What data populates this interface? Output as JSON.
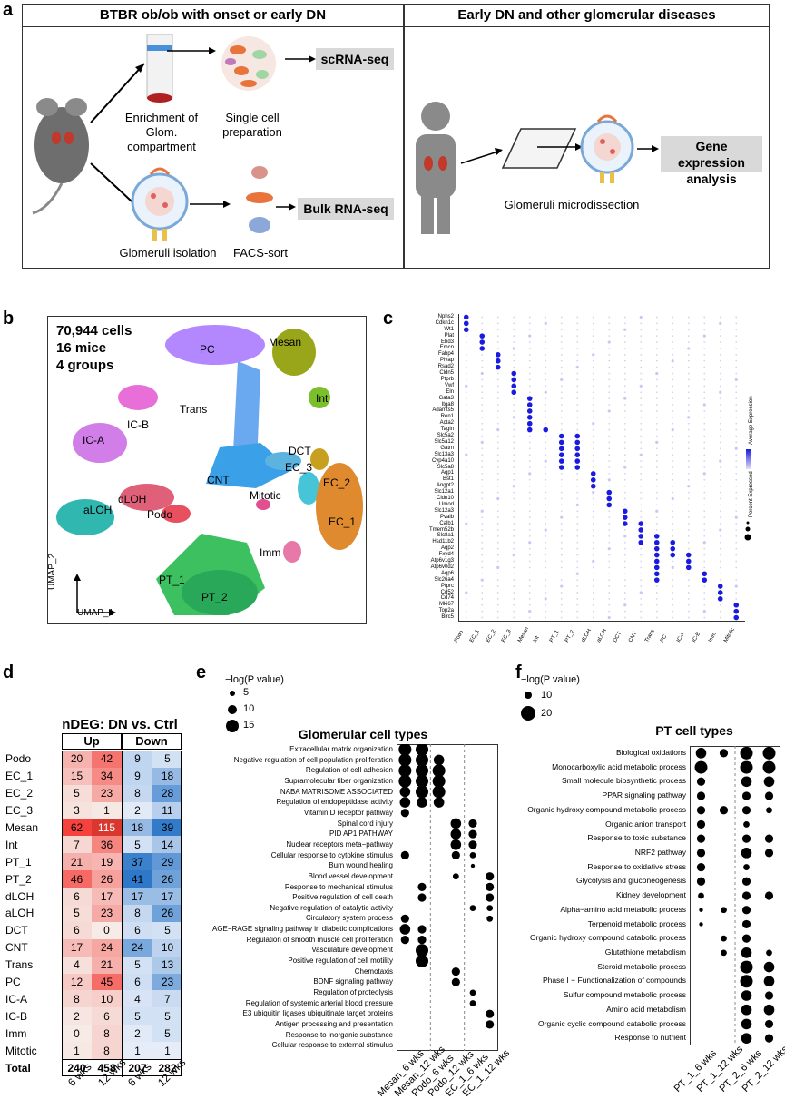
{
  "panel_letters": [
    "a",
    "b",
    "c",
    "d",
    "e",
    "f"
  ],
  "panel_a": {
    "left_title": "BTBR ob/ob with onset or early DN",
    "right_title": "Early DN and other glomerular diseases",
    "enrichment_label": "Enrichment of Glom. compartment",
    "single_cell_label": "Single cell preparation",
    "scrna_label": "scRNA-seq",
    "glomeruli_isolation_label": "Glomeruli isolation",
    "facs_label": "FACS-sort",
    "bulk_label": "Bulk RNA-seq",
    "microdissection_label": "Glomeruli microdissection",
    "gene_expr_label": "Gene expression analysis"
  },
  "panel_b": {
    "stats": [
      "70,944 cells",
      "16 mice",
      "4 groups"
    ],
    "umap_y": "UMAP_2",
    "umap_x": "UMAP_1",
    "clusters": [
      {
        "name": "PC",
        "color": "#b388ff"
      },
      {
        "name": "Mesan",
        "color": "#9aa61a"
      },
      {
        "name": "Int",
        "color": "#7bbf2a"
      },
      {
        "name": "Trans",
        "color": "#6aa8f0"
      },
      {
        "name": "IC-B",
        "color": "#e86fd8"
      },
      {
        "name": "IC-A",
        "color": "#d27ee8"
      },
      {
        "name": "DCT",
        "color": "#5cb3e0"
      },
      {
        "name": "EC_3",
        "color": "#46c4d8"
      },
      {
        "name": "EC_2",
        "color": "#c8a020"
      },
      {
        "name": "CNT",
        "color": "#3aa0e8"
      },
      {
        "name": "Mitotic",
        "color": "#e05090"
      },
      {
        "name": "dLOH",
        "color": "#e0607a"
      },
      {
        "name": "aLOH",
        "color": "#30b8b0"
      },
      {
        "name": "Podo",
        "color": "#e85060"
      },
      {
        "name": "EC_1",
        "color": "#e08a30"
      },
      {
        "name": "Imm",
        "color": "#e878a8"
      },
      {
        "name": "PT_1",
        "color": "#3cc060"
      },
      {
        "name": "PT_2",
        "color": "#2aa85a"
      }
    ]
  },
  "panel_c": {
    "genes": [
      "Nphs2",
      "Cdkn1c",
      "Wt1",
      "Plat",
      "Ehd3",
      "Emcn",
      "Fabp4",
      "Plvap",
      "Rsad2",
      "Cldn5",
      "Ptprb",
      "Vwf",
      "Eln",
      "Gata3",
      "Itga8",
      "Adamts5",
      "Ren1",
      "Acta2",
      "Tagln",
      "Slc5a2",
      "Slc5a12",
      "Gatm",
      "Slc13a3",
      "Cyp4a10",
      "Slc5a8",
      "Aqp1",
      "Bst1",
      "Angpt2",
      "Slc12a1",
      "Cldn10",
      "Umod",
      "Slc12a3",
      "Pvalb",
      "Calb1",
      "Tmem52b",
      "Slc8a1",
      "Hsd11b2",
      "Aqp2",
      "Fxyd4",
      "Atp6v1g3",
      "Atp6v0d2",
      "Aqp6",
      "Slc26a4",
      "Ptprc",
      "Cd52",
      "Cd74",
      "Mki67",
      "Top2a",
      "Birc5"
    ],
    "cell_types": [
      "Podo",
      "EC_1",
      "EC_2",
      "EC_3",
      "Mesan",
      "Int",
      "PT_1",
      "PT_2",
      "dLOH",
      "aLOH",
      "DCT",
      "CNT",
      "Trans",
      "PC",
      "IC-A",
      "IC-B",
      "Imm",
      "Mitotic"
    ],
    "legend_avg": "Average Expression",
    "legend_pct": "Percent Expressed"
  },
  "panel_d": {
    "title": "nDEG: DN vs. Ctrl",
    "up_header": "Up",
    "down_header": "Down",
    "columns": [
      "6 wks",
      "12 wks",
      "6 wks",
      "12 wks"
    ],
    "rows": [
      {
        "name": "Podo",
        "values": [
          20,
          42,
          9,
          5
        ]
      },
      {
        "name": "EC_1",
        "values": [
          15,
          34,
          9,
          18
        ]
      },
      {
        "name": "EC_2",
        "values": [
          5,
          23,
          8,
          28
        ]
      },
      {
        "name": "EC_3",
        "values": [
          3,
          1,
          2,
          11
        ]
      },
      {
        "name": "Mesan",
        "values": [
          62,
          115,
          18,
          39
        ]
      },
      {
        "name": "Int",
        "values": [
          7,
          36,
          5,
          14
        ]
      },
      {
        "name": "PT_1",
        "values": [
          21,
          19,
          37,
          29
        ]
      },
      {
        "name": "PT_2",
        "values": [
          46,
          26,
          41,
          26
        ]
      },
      {
        "name": "dLOH",
        "values": [
          6,
          17,
          17,
          17
        ]
      },
      {
        "name": "aLOH",
        "values": [
          5,
          23,
          8,
          26
        ]
      },
      {
        "name": "DCT",
        "values": [
          6,
          0,
          6,
          5
        ]
      },
      {
        "name": "CNT",
        "values": [
          17,
          24,
          24,
          10
        ]
      },
      {
        "name": "Trans",
        "values": [
          4,
          21,
          5,
          13
        ]
      },
      {
        "name": "PC",
        "values": [
          12,
          45,
          6,
          23
        ]
      },
      {
        "name": "IC-A",
        "values": [
          8,
          10,
          4,
          7
        ]
      },
      {
        "name": "IC-B",
        "values": [
          2,
          6,
          5,
          5
        ]
      },
      {
        "name": "Imm",
        "values": [
          0,
          8,
          2,
          5
        ]
      },
      {
        "name": "Mitotic",
        "values": [
          1,
          8,
          1,
          1
        ]
      }
    ],
    "total_label": "Total",
    "totals": [
      240,
      458,
      207,
      282
    ]
  },
  "panel_e": {
    "title": "Glomerular cell types",
    "legend_title": "−log(P value)",
    "legend_values": [
      "5",
      "10",
      "15"
    ],
    "columns": [
      "Mesan_6 wks",
      "Mesan_12 wks",
      "Podo_6 wks",
      "Podo_12 wks",
      "EC_1_6 wks",
      "EC_1_12 wks"
    ],
    "terms": [
      "Extracellular matrix organization",
      "Negative regulation of cell population proliferation",
      "Regulation of cell adhesion",
      "Supramolecular fiber organization",
      "NABA MATRISOME ASSOCIATED",
      "Regulation of endopeptidase activity",
      "Vitamin D receptor pathway",
      "Spinal cord injury",
      "PID AP1 PATHWAY",
      "Nuclear receptors meta−pathway",
      "Cellular response to cytokine stimulus",
      "Burn wound healing",
      "Blood vessel development",
      "Response to mechanical stimulus",
      "Positive regulation of cell death",
      "Negative regulation of catalytic activity",
      "Circulatory system process",
      "AGE−RAGE signaling pathway in diabetic complications",
      "Regulation of smooth muscle cell proliferation",
      "Vasculature development",
      "Positive regulation of cell motility",
      "Chemotaxis",
      "BDNF signaling pathway",
      "Regulation of proteolysis",
      "Regulation of systemic arterial blood pressure",
      "E3 ubiquitin ligases ubiquitinate target proteins",
      "Antigen processing and presentation",
      "Response to inorganic substance",
      "Cellular response to external stimulus"
    ],
    "dots": [
      [
        0,
        0,
        5
      ],
      [
        0,
        1,
        5
      ],
      [
        1,
        0,
        5
      ],
      [
        1,
        1,
        5
      ],
      [
        1,
        2,
        4
      ],
      [
        2,
        0,
        5
      ],
      [
        2,
        1,
        5
      ],
      [
        2,
        2,
        5
      ],
      [
        3,
        0,
        5
      ],
      [
        3,
        1,
        5
      ],
      [
        3,
        2,
        5
      ],
      [
        4,
        0,
        4
      ],
      [
        4,
        1,
        5
      ],
      [
        4,
        2,
        5
      ],
      [
        5,
        0,
        4
      ],
      [
        5,
        1,
        4
      ],
      [
        5,
        2,
        4
      ],
      [
        6,
        0,
        3
      ],
      [
        7,
        3,
        4
      ],
      [
        7,
        4,
        3
      ],
      [
        8,
        3,
        4
      ],
      [
        8,
        4,
        3
      ],
      [
        9,
        3,
        4
      ],
      [
        9,
        4,
        3
      ],
      [
        10,
        0,
        3
      ],
      [
        10,
        3,
        3
      ],
      [
        10,
        4,
        2
      ],
      [
        11,
        4,
        1
      ],
      [
        12,
        3,
        2
      ],
      [
        12,
        5,
        3
      ],
      [
        13,
        1,
        3
      ],
      [
        13,
        5,
        3
      ],
      [
        14,
        1,
        3
      ],
      [
        14,
        5,
        3
      ],
      [
        15,
        4,
        2
      ],
      [
        15,
        5,
        2
      ],
      [
        16,
        0,
        3
      ],
      [
        16,
        5,
        2
      ],
      [
        17,
        0,
        4
      ],
      [
        17,
        1,
        3
      ],
      [
        18,
        0,
        3
      ],
      [
        18,
        1,
        3
      ],
      [
        19,
        1,
        5
      ],
      [
        20,
        1,
        5
      ],
      [
        21,
        3,
        3
      ],
      [
        22,
        3,
        3
      ],
      [
        23,
        4,
        2
      ],
      [
        24,
        4,
        2
      ],
      [
        25,
        5,
        3
      ],
      [
        26,
        5,
        3
      ],
      [
        27,
        6,
        4
      ],
      [
        28,
        6,
        4
      ]
    ]
  },
  "panel_f": {
    "title": "PT cell types",
    "legend_title": "−log(P value)",
    "legend_values": [
      "10",
      "20"
    ],
    "columns": [
      "PT_1_6 wks",
      "PT_1_12 wks",
      "PT_2_6 wks",
      "PT_2_12 wks"
    ],
    "terms": [
      "Biological oxidations",
      "Monocarboxylic acid metabolic process",
      "Small molecule biosynthetic process",
      "PPAR signaling pathway",
      "Organic hydroxy compound metabolic process",
      "Organic anion transport",
      "Response to toxic substance",
      "NRF2 pathway",
      "Response to oxidative stress",
      "Glycolysis and gluconeogenesis",
      "Kidney development",
      "Alpha−amino acid metabolic process",
      "Terpenoid metabolic process",
      "Organic hydroxy compound catabolic process",
      "Glutathione metabolism",
      "Steroid metabolic process",
      "Phase I − Functionalization of compounds",
      "Sulfur compound metabolic process",
      "Amino acid metabolism",
      "Organic cyclic compound catabolic process",
      "Response to nutrient"
    ],
    "dots": [
      [
        0,
        0,
        4
      ],
      [
        0,
        1,
        3
      ],
      [
        0,
        2,
        5
      ],
      [
        0,
        3,
        5
      ],
      [
        1,
        0,
        5
      ],
      [
        1,
        2,
        5
      ],
      [
        1,
        3,
        5
      ],
      [
        2,
        0,
        3
      ],
      [
        2,
        2,
        4
      ],
      [
        2,
        3,
        4
      ],
      [
        3,
        0,
        3
      ],
      [
        3,
        2,
        3
      ],
      [
        3,
        3,
        3
      ],
      [
        4,
        0,
        3
      ],
      [
        4,
        1,
        3
      ],
      [
        4,
        2,
        3
      ],
      [
        4,
        3,
        2
      ],
      [
        5,
        0,
        3
      ],
      [
        5,
        2,
        2
      ],
      [
        6,
        0,
        3
      ],
      [
        6,
        2,
        3
      ],
      [
        6,
        3,
        3
      ],
      [
        7,
        0,
        3
      ],
      [
        7,
        2,
        4
      ],
      [
        7,
        3,
        3
      ],
      [
        8,
        0,
        3
      ],
      [
        8,
        2,
        2
      ],
      [
        9,
        0,
        3
      ],
      [
        9,
        2,
        3
      ],
      [
        10,
        0,
        2
      ],
      [
        10,
        2,
        3
      ],
      [
        10,
        3,
        3
      ],
      [
        11,
        0,
        1
      ],
      [
        11,
        1,
        2
      ],
      [
        11,
        2,
        3
      ],
      [
        12,
        0,
        1
      ],
      [
        12,
        2,
        3
      ],
      [
        13,
        1,
        2
      ],
      [
        13,
        2,
        3
      ],
      [
        14,
        1,
        2
      ],
      [
        14,
        2,
        4
      ],
      [
        14,
        3,
        2
      ],
      [
        15,
        2,
        5
      ],
      [
        15,
        3,
        4
      ],
      [
        16,
        2,
        5
      ],
      [
        16,
        3,
        4
      ],
      [
        17,
        2,
        4
      ],
      [
        17,
        3,
        3
      ],
      [
        18,
        2,
        4
      ],
      [
        18,
        3,
        4
      ],
      [
        19,
        2,
        4
      ],
      [
        19,
        3,
        3
      ],
      [
        20,
        2,
        4
      ],
      [
        20,
        3,
        3
      ]
    ]
  },
  "colors": {
    "up_scale": "#e8453c",
    "down_scale": "#2f7cc4",
    "gray_box": "#d9d9d9",
    "dot_high": "#1a1ae0",
    "dot_low": "#c8c8f0"
  }
}
